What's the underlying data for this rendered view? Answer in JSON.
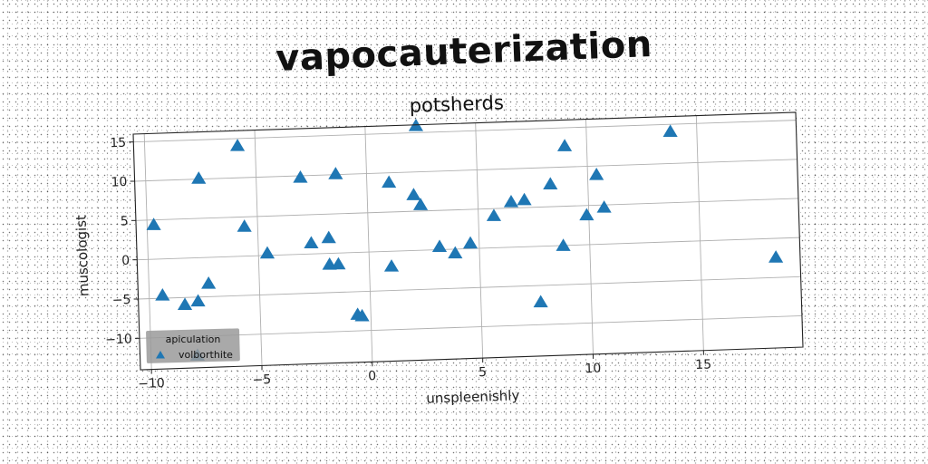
{
  "chart_data": {
    "type": "scatter",
    "title": "vapocauterization",
    "subtitle": "potsherds",
    "xlabel": "unspleenishly",
    "ylabel": "muscologist",
    "xlim": [
      -10.5,
      19.5
    ],
    "ylim": [
      -14,
      16
    ],
    "xticks": [
      -10,
      -5,
      0,
      5,
      10,
      15
    ],
    "yticks": [
      -10,
      -5,
      0,
      5,
      10,
      15
    ],
    "grid": true,
    "marker": "triangle",
    "legend": {
      "title": "apiculation",
      "entries": [
        "volborthite"
      ],
      "placement": "lower-left"
    },
    "series": [
      {
        "name": "volborthite",
        "color": "#1f77b4",
        "points": [
          [
            -9.7,
            4.3
          ],
          [
            -9.4,
            -4.7
          ],
          [
            -8.4,
            -6.0
          ],
          [
            -7.8,
            -5.6
          ],
          [
            -7.6,
            10.0
          ],
          [
            -7.3,
            -3.4
          ],
          [
            -5.8,
            14.0
          ],
          [
            -5.6,
            3.7
          ],
          [
            -4.6,
            0.2
          ],
          [
            -3.0,
            9.7
          ],
          [
            -2.6,
            1.3
          ],
          [
            -1.8,
            1.9
          ],
          [
            -1.8,
            -1.5
          ],
          [
            -1.4,
            -1.5
          ],
          [
            -1.4,
            10.0
          ],
          [
            -0.6,
            -8.0
          ],
          [
            -0.4,
            -8.2
          ],
          [
            1.0,
            8.7
          ],
          [
            1.0,
            -2.0
          ],
          [
            2.1,
            7.0
          ],
          [
            2.3,
            15.8
          ],
          [
            2.4,
            5.7
          ],
          [
            3.2,
            0.3
          ],
          [
            3.9,
            -0.6
          ],
          [
            4.6,
            0.6
          ],
          [
            5.7,
            4.0
          ],
          [
            6.5,
            5.7
          ],
          [
            7.1,
            5.9
          ],
          [
            7.7,
            -7.2
          ],
          [
            8.3,
            7.8
          ],
          [
            8.8,
            -0.1
          ],
          [
            9.0,
            12.6
          ],
          [
            9.9,
            3.7
          ],
          [
            10.4,
            8.8
          ],
          [
            10.7,
            4.6
          ],
          [
            13.8,
            14.0
          ],
          [
            18.4,
            -2.5
          ],
          [
            -7.9,
            -12.5
          ]
        ]
      }
    ]
  }
}
